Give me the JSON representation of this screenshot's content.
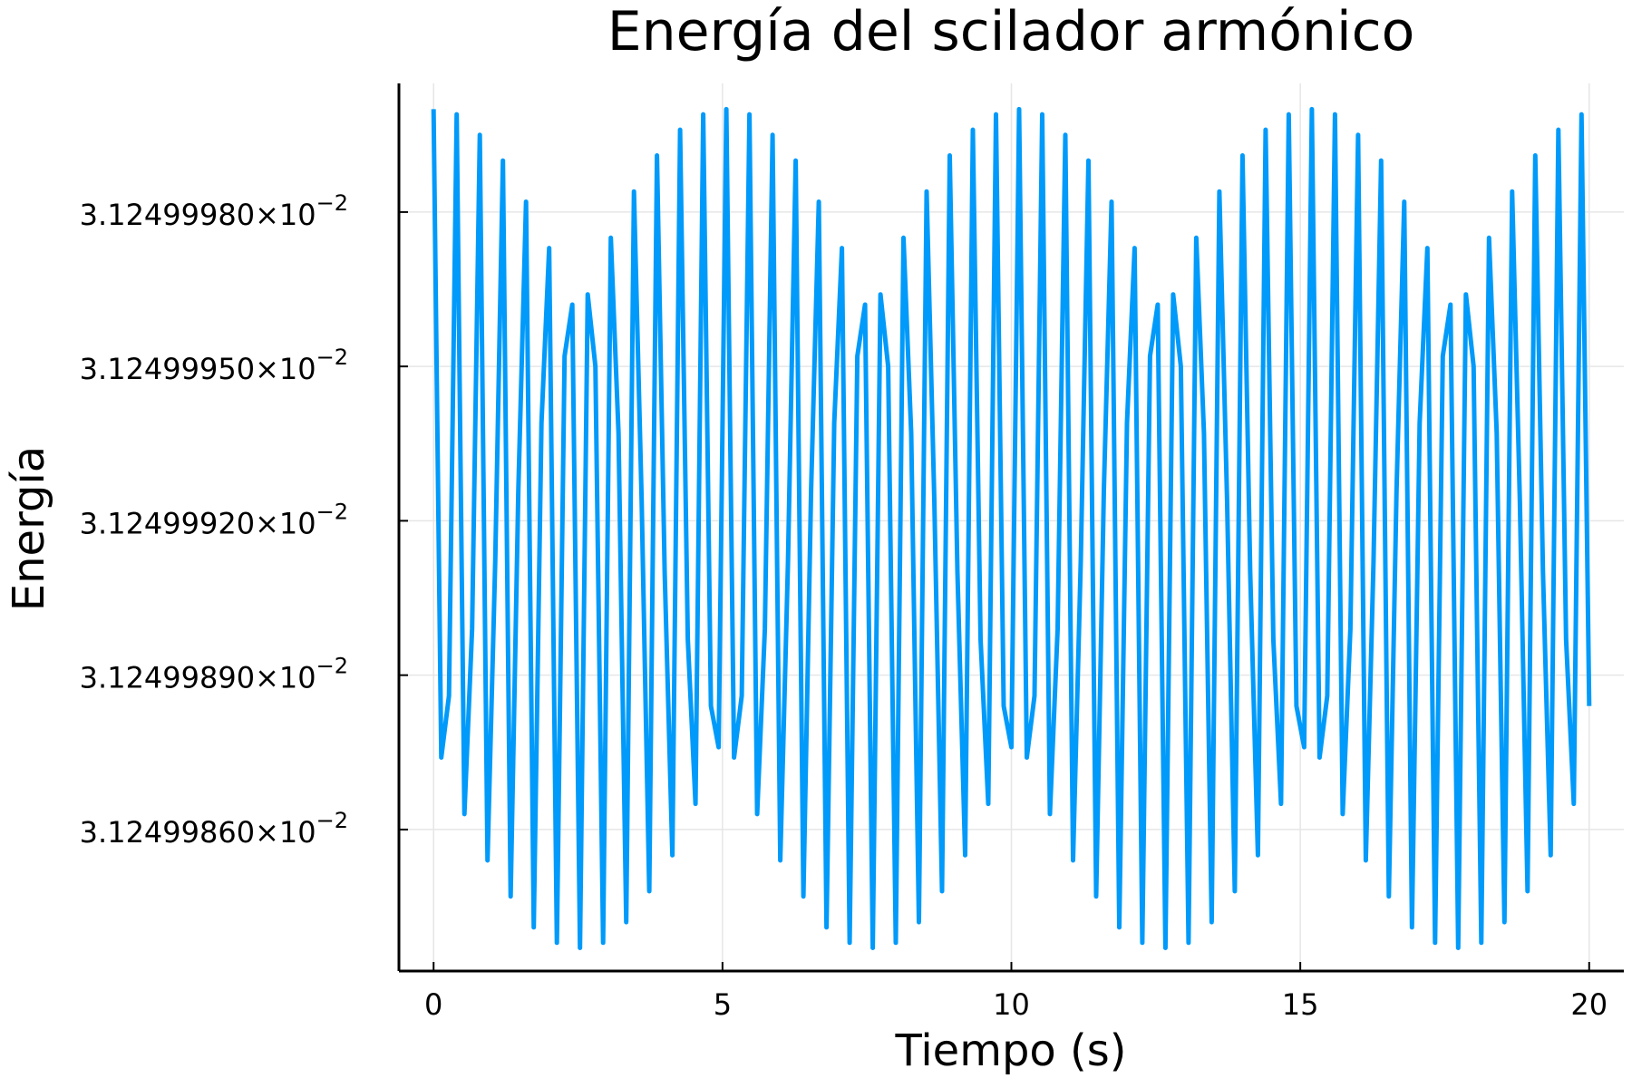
{
  "chart_data": {
    "type": "line",
    "title": "Energía del scilador armónico",
    "xlabel": "Tiempo (s)",
    "ylabel": "Energía",
    "x_start": 0,
    "x_end": 20,
    "xlim": [
      -0.6,
      20.6
    ],
    "ylim": [
      3.124998325,
      3.12500005
    ],
    "y_multiplier_label": "×10",
    "y_exponent": "−2",
    "xticks": [
      0,
      5,
      10,
      15,
      20
    ],
    "xtick_labels": [
      "0",
      "5",
      "10",
      "15",
      "20"
    ],
    "yticks": [
      3.1249998,
      3.1249995,
      3.1249992,
      3.1249989,
      3.1249986
    ],
    "ytick_labels": [
      "3.12499980",
      "3.12499950",
      "3.12499920",
      "3.12499890",
      "3.12499860"
    ],
    "grid": true,
    "legend": "none",
    "series": [
      {
        "name": "Energía",
        "color": "#009AFA",
        "y": [
          3.125,
          3.12499874,
          3.12499886,
          3.12499999,
          3.12499863,
          3.12499899,
          3.12499995,
          3.12499854,
          3.12499912,
          3.1249999,
          3.12499847,
          3.12499926,
          3.12499982,
          3.12499841,
          3.12499939,
          3.12499973,
          3.12499838,
          3.12499952,
          3.12499962,
          3.12499837,
          3.12499964,
          3.1249995,
          3.12499838,
          3.12499975,
          3.12499937,
          3.12499842,
          3.12499984,
          3.12499924,
          3.12499848,
          3.12499991,
          3.1249991,
          3.12499855,
          3.12499996,
          3.12499897,
          3.12499865,
          3.12499999,
          3.12499884,
          3.12499876,
          3.125,
          3.12499874,
          3.12499886,
          3.12499999,
          3.12499863,
          3.12499899,
          3.12499995,
          3.12499854,
          3.12499912,
          3.1249999,
          3.12499847,
          3.12499926,
          3.12499982,
          3.12499841,
          3.12499939,
          3.12499973,
          3.12499838,
          3.12499952,
          3.12499962,
          3.12499837,
          3.12499964,
          3.1249995,
          3.12499838,
          3.12499975,
          3.12499937,
          3.12499842,
          3.12499984,
          3.12499924,
          3.12499848,
          3.12499991,
          3.1249991,
          3.12499855,
          3.12499996,
          3.12499897,
          3.12499865,
          3.12499999,
          3.12499884,
          3.12499876,
          3.125,
          3.12499874,
          3.12499886,
          3.12499999,
          3.12499863,
          3.12499899,
          3.12499995,
          3.12499854,
          3.12499912,
          3.1249999,
          3.12499847,
          3.12499926,
          3.12499982,
          3.12499841,
          3.12499939,
          3.12499973,
          3.12499838,
          3.12499952,
          3.12499962,
          3.12499837,
          3.12499964,
          3.1249995,
          3.12499838,
          3.12499975,
          3.12499937,
          3.12499842,
          3.12499984,
          3.12499924,
          3.12499848,
          3.12499991,
          3.1249991,
          3.12499855,
          3.12499996,
          3.12499897,
          3.12499865,
          3.12499999,
          3.12499884,
          3.12499876,
          3.125,
          3.12499874,
          3.12499886,
          3.12499999,
          3.12499863,
          3.12499899,
          3.12499995,
          3.12499854,
          3.12499912,
          3.1249999,
          3.12499847,
          3.12499926,
          3.12499982,
          3.12499841,
          3.12499939,
          3.12499973,
          3.12499838,
          3.12499952,
          3.12499962,
          3.12499837,
          3.12499964,
          3.1249995,
          3.12499838,
          3.12499975,
          3.12499937,
          3.12499842,
          3.12499984,
          3.12499924,
          3.12499848,
          3.12499991,
          3.1249991,
          3.12499855,
          3.12499996,
          3.12499897,
          3.12499865,
          3.12499999,
          3.12499884
        ]
      }
    ]
  }
}
